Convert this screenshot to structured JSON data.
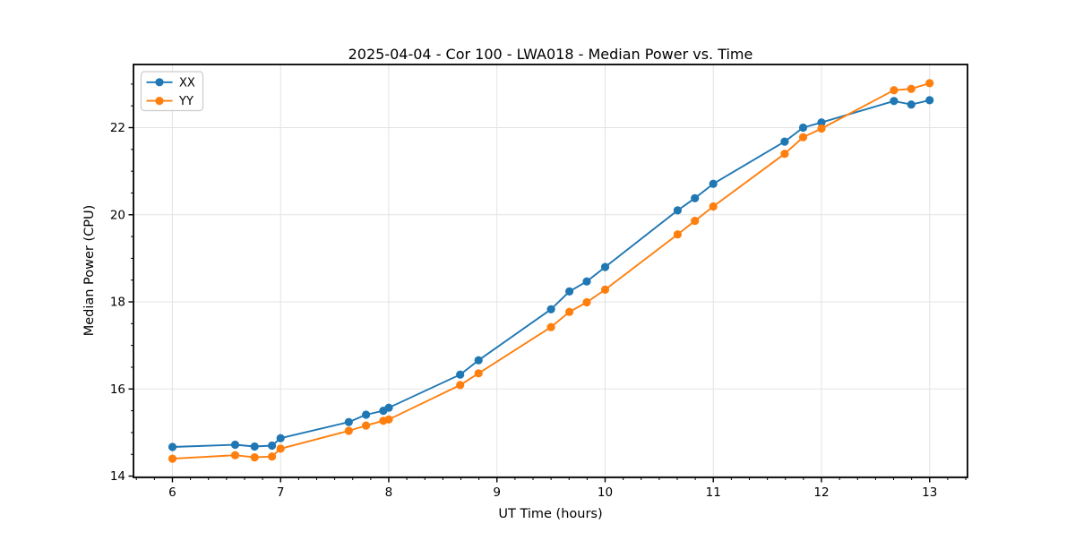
{
  "figure": {
    "background": "#ffffff",
    "spine_color": "#000000",
    "text_color": "#000000"
  },
  "chart_data": {
    "type": "line",
    "title": "2025-04-04 - Cor 100 - LWA018 - Median Power vs. Time",
    "xlabel": "UT Time (hours)",
    "ylabel": "Median Power (CPU)",
    "x": [
      6.0,
      6.58,
      6.76,
      6.92,
      7.0,
      7.63,
      7.79,
      7.95,
      8.0,
      8.66,
      8.83,
      9.5,
      9.67,
      9.83,
      10.0,
      10.67,
      10.83,
      11.0,
      11.66,
      11.83,
      12.0,
      12.67,
      12.83,
      13.0
    ],
    "series": [
      {
        "name": "XX",
        "color": "#1f77b4",
        "marker": "circle",
        "values": [
          14.67,
          14.72,
          14.68,
          14.7,
          14.87,
          15.24,
          15.41,
          15.5,
          15.57,
          16.33,
          16.66,
          17.83,
          18.24,
          18.47,
          18.8,
          20.1,
          20.38,
          20.71,
          21.68,
          22.0,
          22.12,
          22.61,
          22.53,
          22.63
        ]
      },
      {
        "name": "YY",
        "color": "#ff7f0e",
        "marker": "circle",
        "values": [
          14.4,
          14.48,
          14.43,
          14.45,
          14.63,
          15.04,
          15.16,
          15.27,
          15.3,
          16.09,
          16.36,
          17.42,
          17.77,
          17.99,
          18.28,
          19.55,
          19.86,
          20.19,
          21.4,
          21.78,
          21.98,
          22.86,
          22.89,
          23.02
        ]
      }
    ],
    "xlim": [
      5.64,
      13.35
    ],
    "ylim": [
      13.97,
      23.45
    ],
    "xticks": [
      6,
      7,
      8,
      9,
      10,
      11,
      12,
      13
    ],
    "yticks": [
      14,
      16,
      18,
      20,
      22
    ],
    "x_minor_step": 0.16667,
    "y_minor_step": 0.5,
    "grid": true,
    "grid_color": "#e3e3e3",
    "legend": {
      "position": "upper left",
      "labels": [
        "XX",
        "YY"
      ]
    }
  }
}
